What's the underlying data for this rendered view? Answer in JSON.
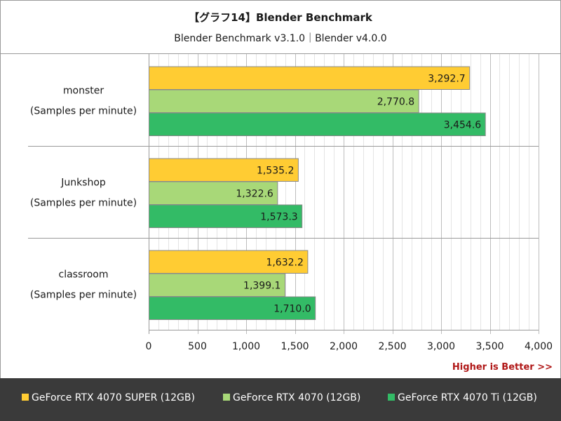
{
  "chart_data": {
    "type": "bar",
    "orientation": "horizontal",
    "title": "【グラフ14】Blender Benchmark",
    "subtitle": "Blender Benchmark v3.1.0｜Blender v4.0.0",
    "categories": [
      {
        "name": "monster",
        "unit": "(Samples per minute)"
      },
      {
        "name": "Junkshop",
        "unit": "(Samples per minute)"
      },
      {
        "name": "classroom",
        "unit": "(Samples per minute)"
      }
    ],
    "series": [
      {
        "name": "GeForce RTX 4070 SUPER (12GB)",
        "color": "#ffcc33",
        "values": [
          3292.7,
          1535.2,
          1632.2
        ],
        "labels": [
          "3,292.7",
          "1,535.2",
          "1,632.2"
        ]
      },
      {
        "name": "GeForce RTX 4070 (12GB)",
        "color": "#a8d878",
        "values": [
          2770.8,
          1322.6,
          1399.1
        ],
        "labels": [
          "2,770.8",
          "1,322.6",
          "1,399.1"
        ]
      },
      {
        "name": "GeForce RTX 4070 Ti (12GB)",
        "color": "#33bb66",
        "values": [
          3454.6,
          1573.3,
          1710.0
        ],
        "labels": [
          "3,454.6",
          "1,573.3",
          "1,710.0"
        ]
      }
    ],
    "xlim": [
      0,
      4000
    ],
    "xticks": [
      0,
      500,
      1000,
      1500,
      2000,
      2500,
      3000,
      3500,
      4000
    ],
    "xtick_labels": [
      "0",
      "500",
      "1,000",
      "1,500",
      "2,000",
      "2,500",
      "3,000",
      "3,500",
      "4,000"
    ],
    "grid": true,
    "legend_position": "bottom",
    "annotation": "Higher is Better >>"
  }
}
